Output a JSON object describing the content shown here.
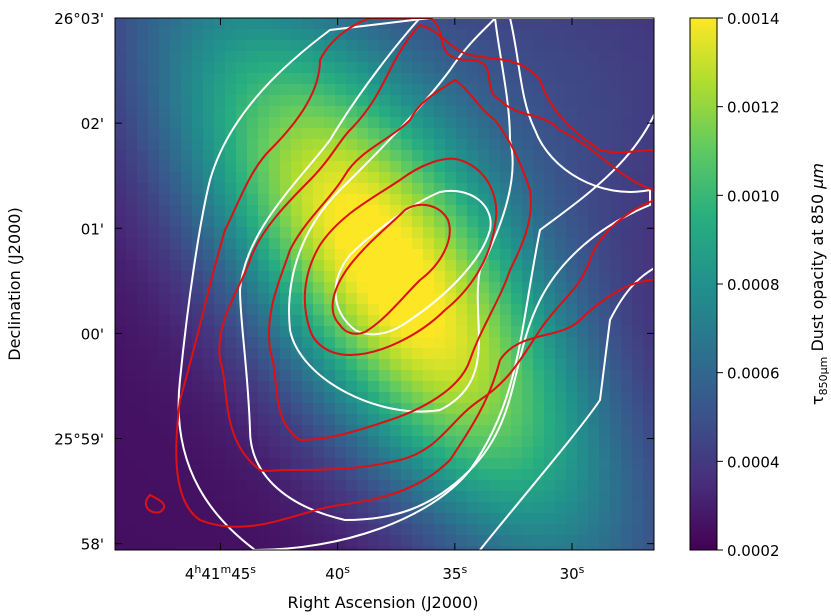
{
  "chart_data": {
    "type": "heatmap",
    "title": "",
    "xlabel": "Right Ascension (J2000)",
    "ylabel": "Declination (J2000)",
    "x_ticks": [
      {
        "value_s": 45,
        "h": "4",
        "m": "41",
        "s": "45"
      },
      {
        "value_s": 40,
        "label": "40",
        "sup": "s"
      },
      {
        "value_s": 35,
        "label": "35",
        "sup": "s"
      },
      {
        "value_s": 30,
        "label": "30",
        "sup": "s"
      }
    ],
    "x_range_s": [
      49.5,
      26.5
    ],
    "y_ticks": [
      {
        "value_arcmin": 3,
        "label": "26°03'"
      },
      {
        "value_arcmin": 2,
        "label": "02'"
      },
      {
        "value_arcmin": 1,
        "label": "01'"
      },
      {
        "value_arcmin": 0,
        "label": "00'"
      },
      {
        "value_arcmin": -1,
        "label": "25°59'"
      },
      {
        "value_arcmin": -2,
        "label": "58'"
      }
    ],
    "y_range_arcmin": [
      -2.06,
      3.0
    ],
    "colorbar": {
      "label_prefix": "τ",
      "label_sub": "850μm",
      "label_rest": " Dust opacity at 850 ",
      "label_unit": "μm",
      "range": [
        0.0002,
        0.0014
      ],
      "ticks": [
        "0.0002",
        "0.0004",
        "0.0006",
        "0.0008",
        "0.0010",
        "0.0012",
        "0.0014"
      ],
      "colormap": "viridis"
    },
    "peak": {
      "ra_s": 38.0,
      "dec_arcmin": 0.45,
      "value": 0.0014
    },
    "contours": {
      "white_color": "#ffffff",
      "red_color": "#dd1111"
    }
  }
}
